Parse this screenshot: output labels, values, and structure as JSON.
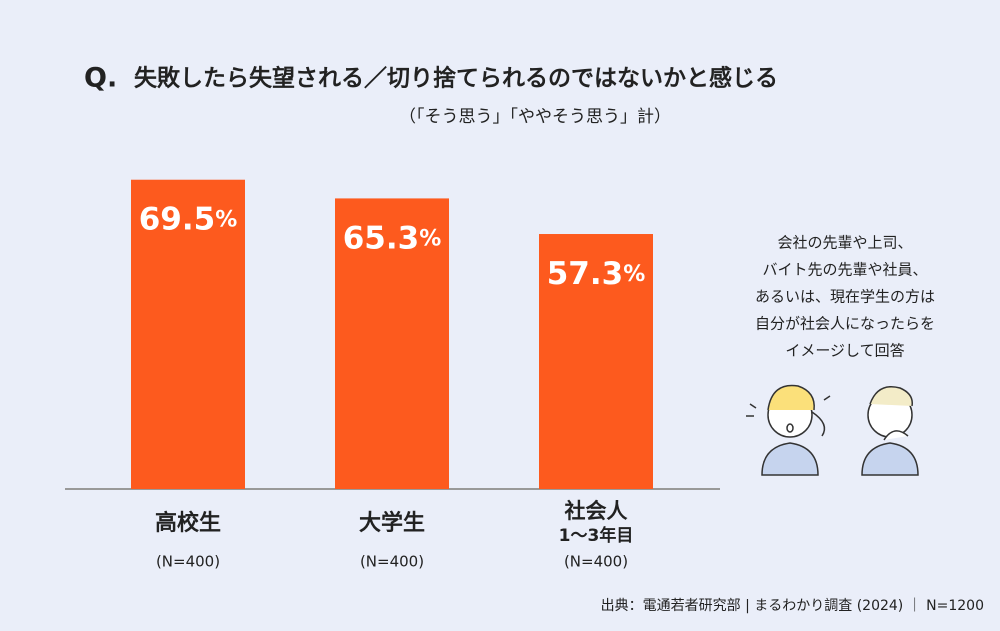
{
  "chart_data": {
    "type": "bar",
    "title_prefix": "Q.",
    "title": "失敗したら失望される／切り捨てられるのではないかと感じる",
    "subtitle": "（「そう思う」「ややそう思う」計）",
    "categories": [
      "高校生",
      "大学生",
      "社会人\n1〜3年目"
    ],
    "values": [
      69.5,
      65.3,
      57.3
    ],
    "value_labels": [
      "69.5%",
      "65.3%",
      "57.3%"
    ],
    "sample_sizes": [
      "(N=400)",
      "(N=400)",
      "(N=400)"
    ],
    "color": "#fd5a1e",
    "note": [
      "会社の先輩や上司、",
      "バイト先の先輩や社員、",
      "あるいは、現在学生の方は",
      "自分が社会人になったらを",
      "イメージして回答"
    ],
    "source": "出典：電通若者研究部 | まるわかり調査 (2024) ｜ N=1200"
  }
}
